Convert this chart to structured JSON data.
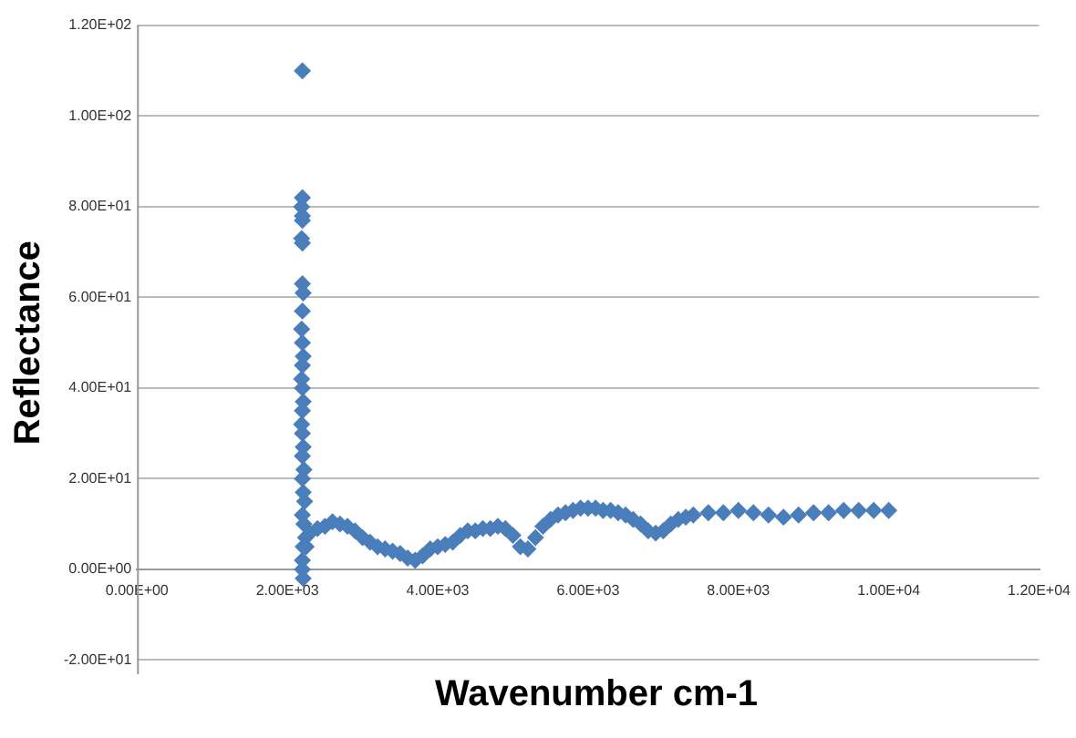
{
  "chart_data": {
    "type": "scatter",
    "xlabel": "Wavenumber cm-1",
    "ylabel": "Reflectance",
    "marker": "diamond",
    "grid": "y",
    "legend": false,
    "xlim": [
      0,
      12000
    ],
    "xticks": [
      {
        "value": 0,
        "label": "0.00E+00"
      },
      {
        "value": 2000,
        "label": "2.00E+03"
      },
      {
        "value": 4000,
        "label": "4.00E+03"
      },
      {
        "value": 6000,
        "label": "6.00E+03"
      },
      {
        "value": 8000,
        "label": "8.00E+03"
      },
      {
        "value": 10000,
        "label": "1.00E+04"
      },
      {
        "value": 12000,
        "label": "1.20E+04"
      }
    ],
    "ylim": [
      -20,
      120
    ],
    "yticks": [
      {
        "value": -20,
        "label": "-2.00E+01"
      },
      {
        "value": 0,
        "label": "0.00E+00"
      },
      {
        "value": 20,
        "label": "2.00E+01"
      },
      {
        "value": 40,
        "label": "4.00E+01"
      },
      {
        "value": 60,
        "label": "6.00E+01"
      },
      {
        "value": 80,
        "label": "8.00E+01"
      },
      {
        "value": 100,
        "label": "1.00E+02"
      },
      {
        "value": 120,
        "label": "1.20E+02"
      }
    ],
    "series": [
      {
        "color": "#4a7ebb",
        "x": [
          2200,
          2200,
          2190,
          2200,
          2200,
          2190,
          2200,
          2200,
          2210,
          2200,
          2190,
          2200,
          2210,
          2200,
          2190,
          2200,
          2210,
          2200,
          2190,
          2200,
          2210,
          2200,
          2220,
          2200,
          2210,
          2230,
          2200,
          2220,
          2240,
          2210,
          2200,
          2200,
          2210,
          2250,
          2300,
          2400,
          2500,
          2600,
          2700,
          2800,
          2900,
          3000,
          3100,
          3200,
          3300,
          3400,
          3500,
          3600,
          3700,
          3800,
          3900,
          4000,
          4100,
          4200,
          4300,
          4400,
          4500,
          4600,
          4700,
          4800,
          4900,
          5000,
          5100,
          5200,
          5300,
          5400,
          5500,
          5600,
          5700,
          5800,
          5900,
          6000,
          6100,
          6200,
          6300,
          6400,
          6500,
          6600,
          6700,
          6800,
          6900,
          7000,
          7100,
          7200,
          7300,
          7400,
          7600,
          7800,
          8000,
          8200,
          8400,
          8600,
          8800,
          9000,
          9200,
          9400,
          9600,
          9800,
          10000
        ],
        "values": [
          110,
          82,
          80,
          78,
          77,
          73,
          72,
          63,
          61,
          57,
          53,
          50,
          47,
          45,
          42,
          40,
          37,
          35,
          32,
          30,
          27,
          25,
          22,
          20,
          17,
          15,
          12,
          10,
          7,
          5,
          2,
          0,
          -2,
          5,
          8,
          9,
          9.5,
          10.5,
          10,
          9.5,
          8.5,
          7,
          6,
          5,
          4.5,
          4,
          3.5,
          2.5,
          2,
          3,
          4.5,
          5,
          5.5,
          6,
          7.5,
          8.5,
          8.5,
          9,
          9,
          9.5,
          9,
          7.5,
          5,
          4.5,
          7,
          9.5,
          11,
          12,
          12.5,
          13,
          13.5,
          13.5,
          13.5,
          13,
          13,
          12.5,
          12,
          11,
          10,
          8.5,
          8,
          8.5,
          10,
          11,
          11.5,
          12,
          12.5,
          12.5,
          13,
          12.5,
          12,
          11.5,
          12,
          12.5,
          12.5,
          13,
          13,
          13,
          13
        ]
      }
    ]
  }
}
